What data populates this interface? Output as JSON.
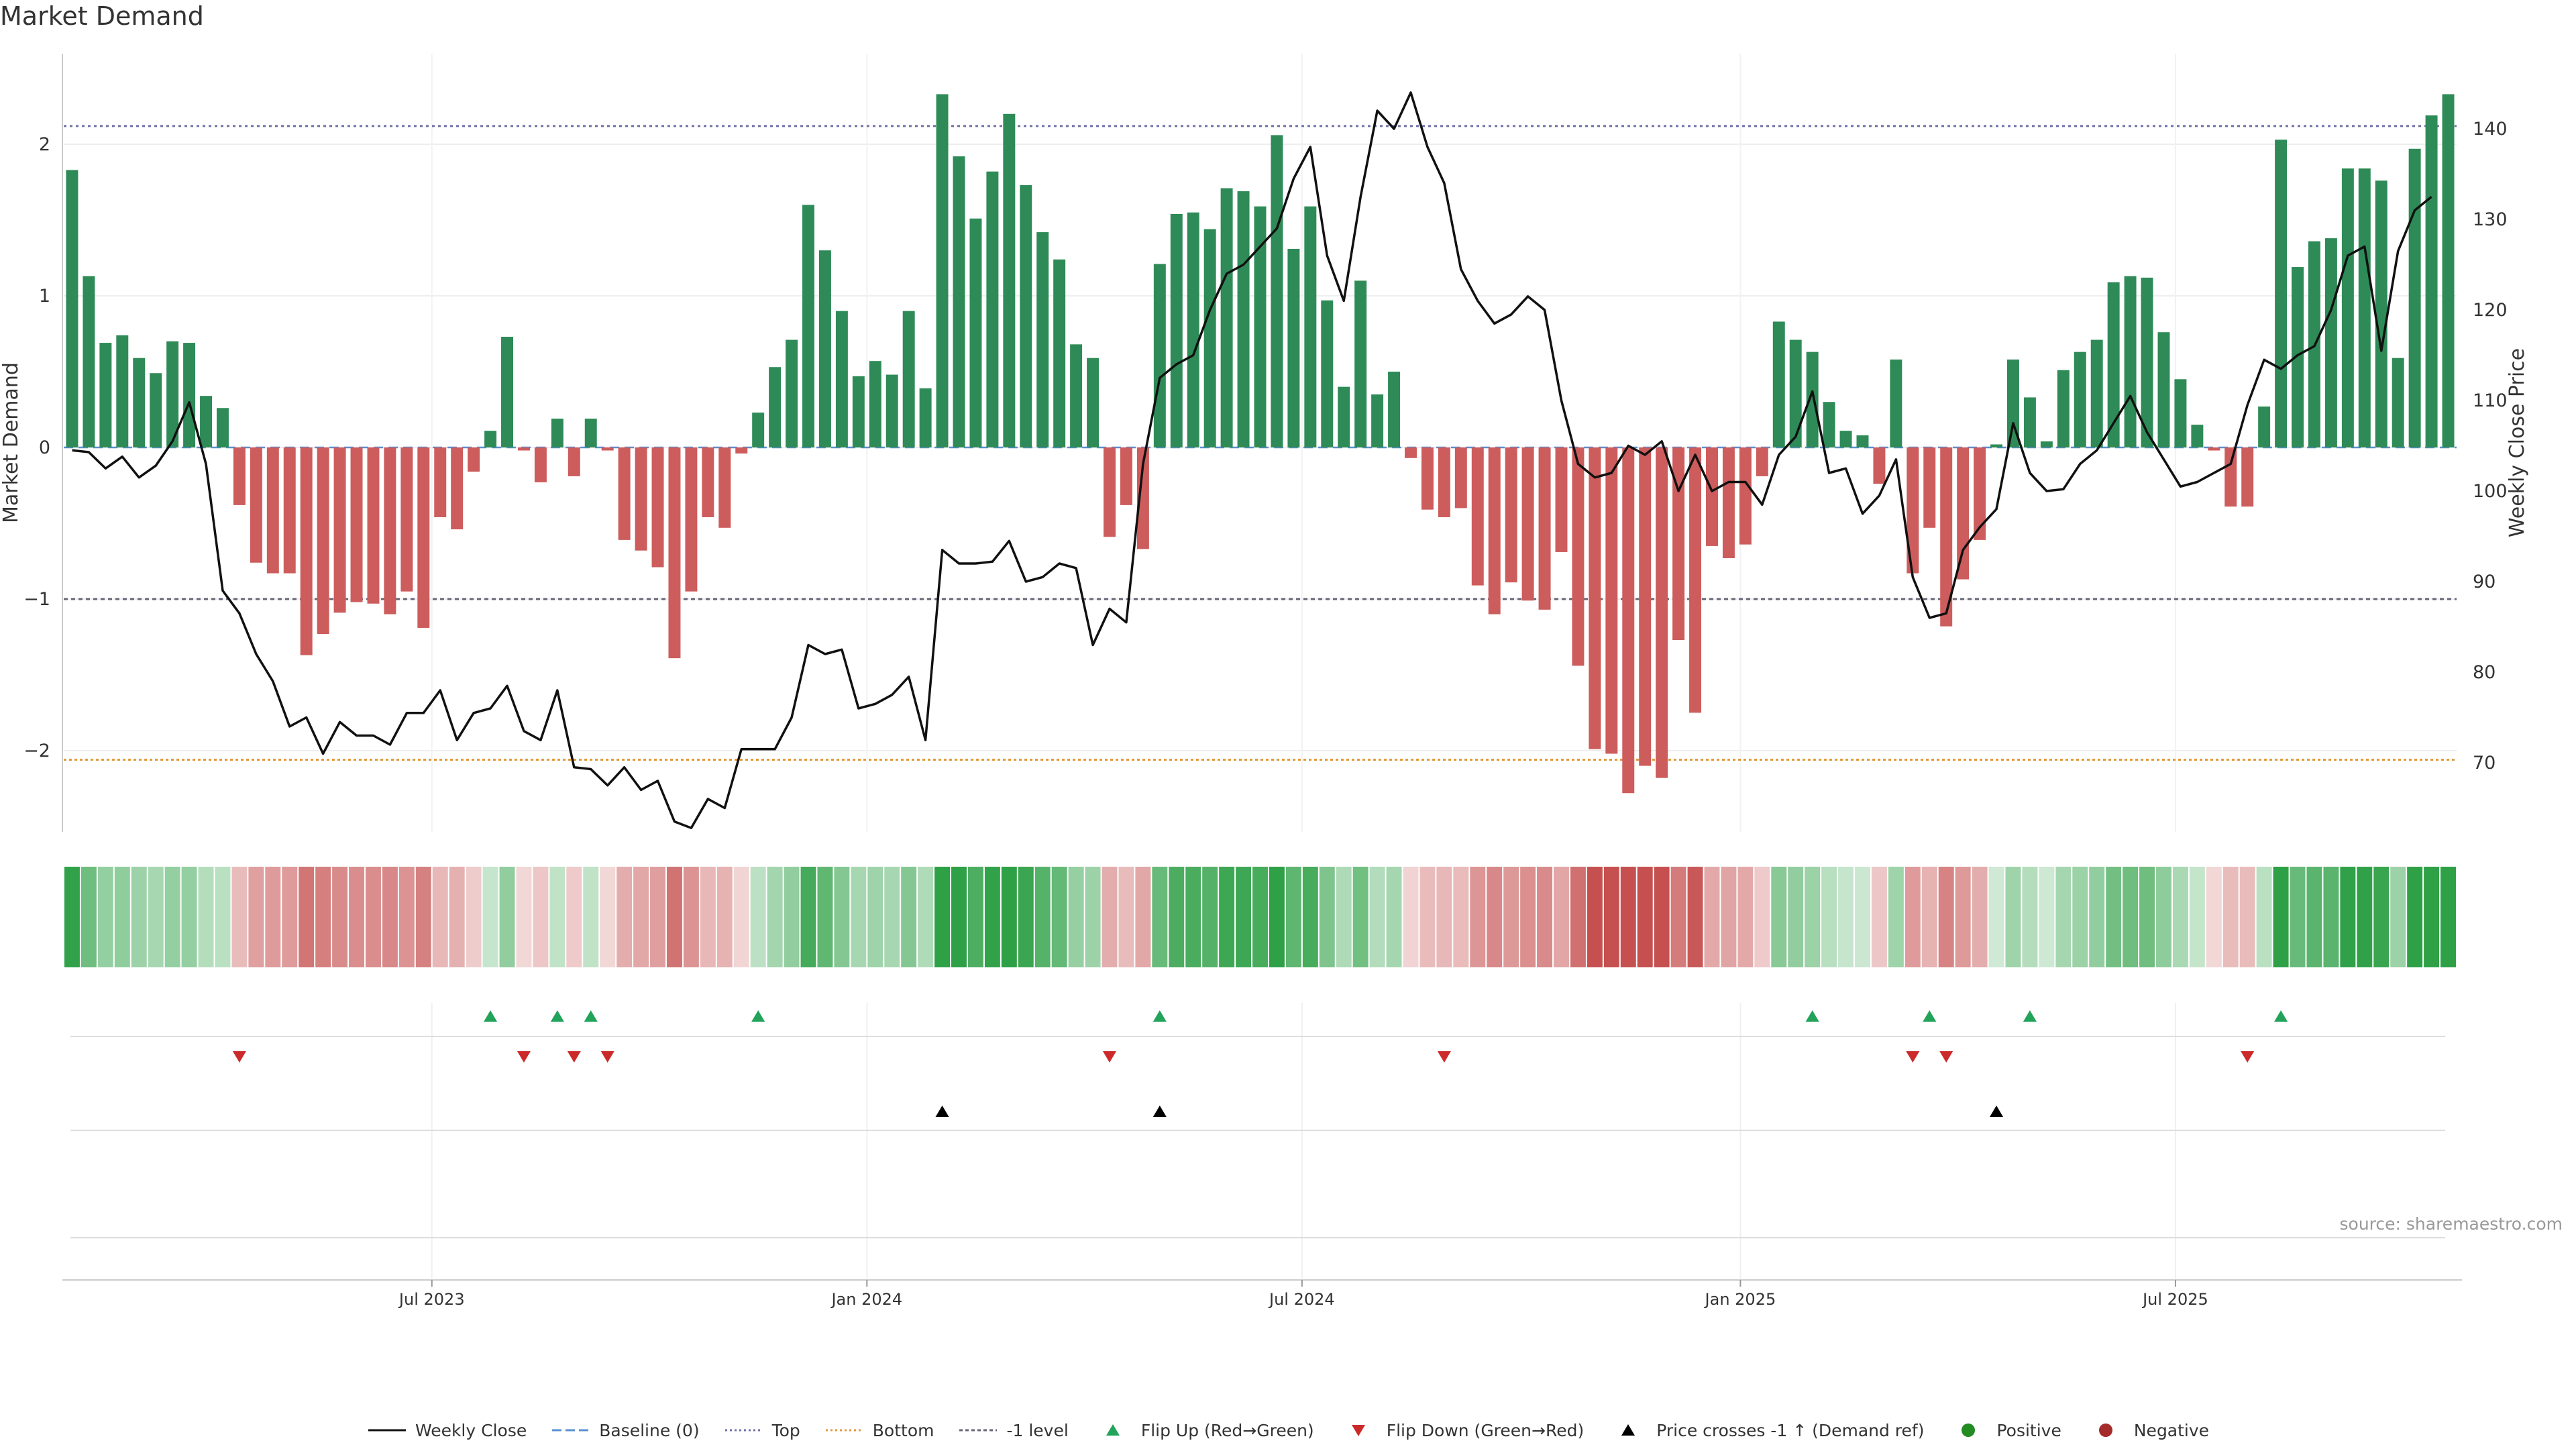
{
  "title": "Market Demand",
  "source": "source: sharemaestro.com",
  "colors": {
    "positive": "#2e8b57",
    "negative": "#cd5c5c",
    "price": "#111111",
    "top": "#7070a8",
    "bottom": "#e09a3a",
    "minus1": "#666677",
    "flip_up": "#22a35a",
    "flip_down": "#cc2a2a",
    "cross": "#000000",
    "pos_dot": "#228b22",
    "neg_dot": "#a52a2a"
  },
  "chart_data": {
    "type": "bar",
    "title": "Market Demand",
    "xlabel": "",
    "ylabel": "Market Demand",
    "y2label": "Weekly Close Price",
    "ylim": [
      -2.55,
      2.55
    ],
    "y2lim": [
      62,
      144
    ],
    "yticks": [
      "−2",
      "−1",
      "0",
      "1",
      "2"
    ],
    "y2ticks": [
      "70",
      "80",
      "90",
      "100",
      "110",
      "120",
      "130",
      "140"
    ],
    "xtick_labels": [
      "Jul 2023",
      "Jan 2024",
      "Jul 2024",
      "Jan 2025",
      "Jul 2025"
    ],
    "xtick_weeks": [
      21.5,
      47.5,
      73.5,
      99.7,
      125.7
    ],
    "reference_lines": {
      "top": 2.12,
      "bottom": -2.06,
      "minus_one": -1.0,
      "baseline": 0
    },
    "demand": [
      1.83,
      1.13,
      0.69,
      0.74,
      0.59,
      0.49,
      0.7,
      0.69,
      0.34,
      0.26,
      -0.38,
      -0.76,
      -0.83,
      -0.83,
      -1.37,
      -1.23,
      -1.09,
      -1.02,
      -1.03,
      -1.1,
      -0.95,
      -1.19,
      -0.46,
      -0.54,
      -0.16,
      0.11,
      0.73,
      -0.02,
      -0.23,
      0.19,
      -0.19,
      0.19,
      -0.02,
      -0.61,
      -0.68,
      -0.79,
      -1.39,
      -0.95,
      -0.46,
      -0.53,
      -0.04,
      0.23,
      0.53,
      0.71,
      1.6,
      1.3,
      0.9,
      0.47,
      0.57,
      0.48,
      0.9,
      0.39,
      2.33,
      1.92,
      1.51,
      1.82,
      2.2,
      1.73,
      1.42,
      1.24,
      0.68,
      0.59,
      -0.59,
      -0.38,
      -0.67,
      1.21,
      1.54,
      1.55,
      1.44,
      1.71,
      1.69,
      1.59,
      2.06,
      1.31,
      1.59,
      0.97,
      0.4,
      1.1,
      0.35,
      0.5,
      -0.07,
      -0.41,
      -0.46,
      -0.4,
      -0.91,
      -1.1,
      -0.89,
      -1.01,
      -1.07,
      -0.69,
      -1.44,
      -1.99,
      -2.02,
      -2.28,
      -2.1,
      -2.18,
      -1.27,
      -1.75,
      -0.65,
      -0.73,
      -0.64,
      -0.19,
      0.83,
      0.71,
      0.63,
      0.3,
      0.11,
      0.08,
      -0.24,
      0.58,
      -0.83,
      -0.53,
      -1.18,
      -0.87,
      -0.61,
      0.02,
      0.58,
      0.33,
      0.04,
      0.51,
      0.63,
      0.71,
      1.09,
      1.13,
      1.12,
      0.76,
      0.45,
      0.15,
      -0.02,
      -0.39,
      -0.39,
      0.27,
      2.03,
      1.19,
      1.36,
      1.38,
      1.84,
      1.84,
      1.76,
      0.59,
      1.97,
      2.19,
      2.33
    ],
    "weekly_close": [
      104.5,
      104.3,
      102.5,
      103.8,
      101.5,
      102.8,
      105.5,
      109.8,
      103,
      89,
      86.5,
      82,
      79,
      74,
      75,
      71,
      74.5,
      73,
      73,
      72,
      75.5,
      75.5,
      78,
      72.5,
      75.5,
      76,
      78.5,
      73.5,
      72.5,
      78,
      69.5,
      69.3,
      67.5,
      69.5,
      67,
      68,
      63.5,
      62.8,
      66,
      65,
      71.5,
      71.5,
      71.5,
      75,
      83,
      82,
      82.5,
      76,
      76.5,
      77.5,
      79.5,
      72.5,
      93.5,
      92,
      92,
      92.2,
      94.5,
      90,
      90.5,
      92,
      91.5,
      83,
      87,
      85.5,
      103,
      112.5,
      114,
      115,
      120,
      124,
      125,
      127,
      129,
      134.5,
      138,
      126,
      121,
      132.5,
      142,
      140,
      144,
      138,
      134,
      124.5,
      121,
      118.5,
      119.5,
      121.5,
      120,
      110,
      103,
      101.5,
      102,
      105,
      104,
      105.5,
      100,
      104,
      100,
      101,
      101,
      98.5,
      104,
      106,
      111,
      102,
      102.5,
      97.5,
      99.5,
      103.5,
      90.5,
      86,
      86.5,
      93.5,
      96,
      98,
      107.5,
      102,
      100,
      100.2,
      103,
      104.5,
      107.5,
      110.5,
      106.5,
      103.5,
      100.5,
      101,
      102,
      103,
      109.5,
      114.5,
      113.5,
      115,
      116,
      120,
      126,
      127,
      115.5,
      126.5,
      131,
      132.5
    ],
    "flip_up_weeks": [
      25,
      29,
      31,
      41,
      65,
      104,
      111,
      117,
      132
    ],
    "flip_down_weeks": [
      10,
      27,
      30,
      32,
      62,
      82,
      110,
      112,
      130
    ],
    "price_cross_weeks": [
      52,
      65,
      115
    ]
  },
  "legend": [
    {
      "label": "Weekly Close",
      "kind": "solid"
    },
    {
      "label": "Baseline (0)",
      "kind": "dashed"
    },
    {
      "label": "Top",
      "kind": "dotted-top"
    },
    {
      "label": "Bottom",
      "kind": "dotted-bottom"
    },
    {
      "label": "-1 level",
      "kind": "dotted-minus1"
    },
    {
      "label": "Flip Up (Red→Green)",
      "kind": "tri-up"
    },
    {
      "label": "Flip Down (Green→Red)",
      "kind": "tri-down"
    },
    {
      "label": "Price crosses -1 ↑ (Demand ref)",
      "kind": "tri-cross"
    },
    {
      "label": "Positive",
      "kind": "dot-pos"
    },
    {
      "label": "Negative",
      "kind": "dot-neg"
    }
  ]
}
